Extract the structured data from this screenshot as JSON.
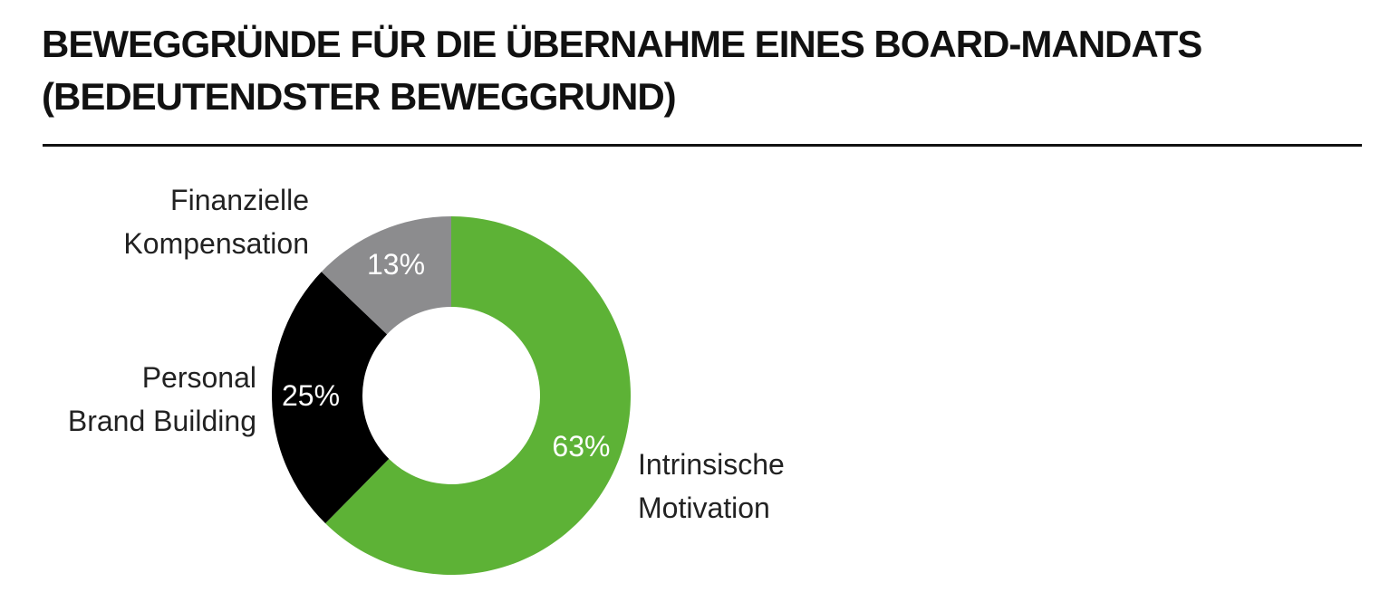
{
  "chart_data": {
    "type": "donut",
    "title": "BEWEGGRÜNDE FÜR DIE ÜBERNAHME EINES BOARD-MANDATS (BEDEUTENDSTER BEWEGGRUND)",
    "categories": [
      "Intrinsische Motivation",
      "Personal Brand Building",
      "Finanzielle Kompensation"
    ],
    "values": [
      63,
      25,
      13
    ],
    "value_labels": [
      "63%",
      "25%",
      "13%"
    ],
    "colors": [
      "#5db236",
      "#000000",
      "#8c8c8e"
    ]
  }
}
